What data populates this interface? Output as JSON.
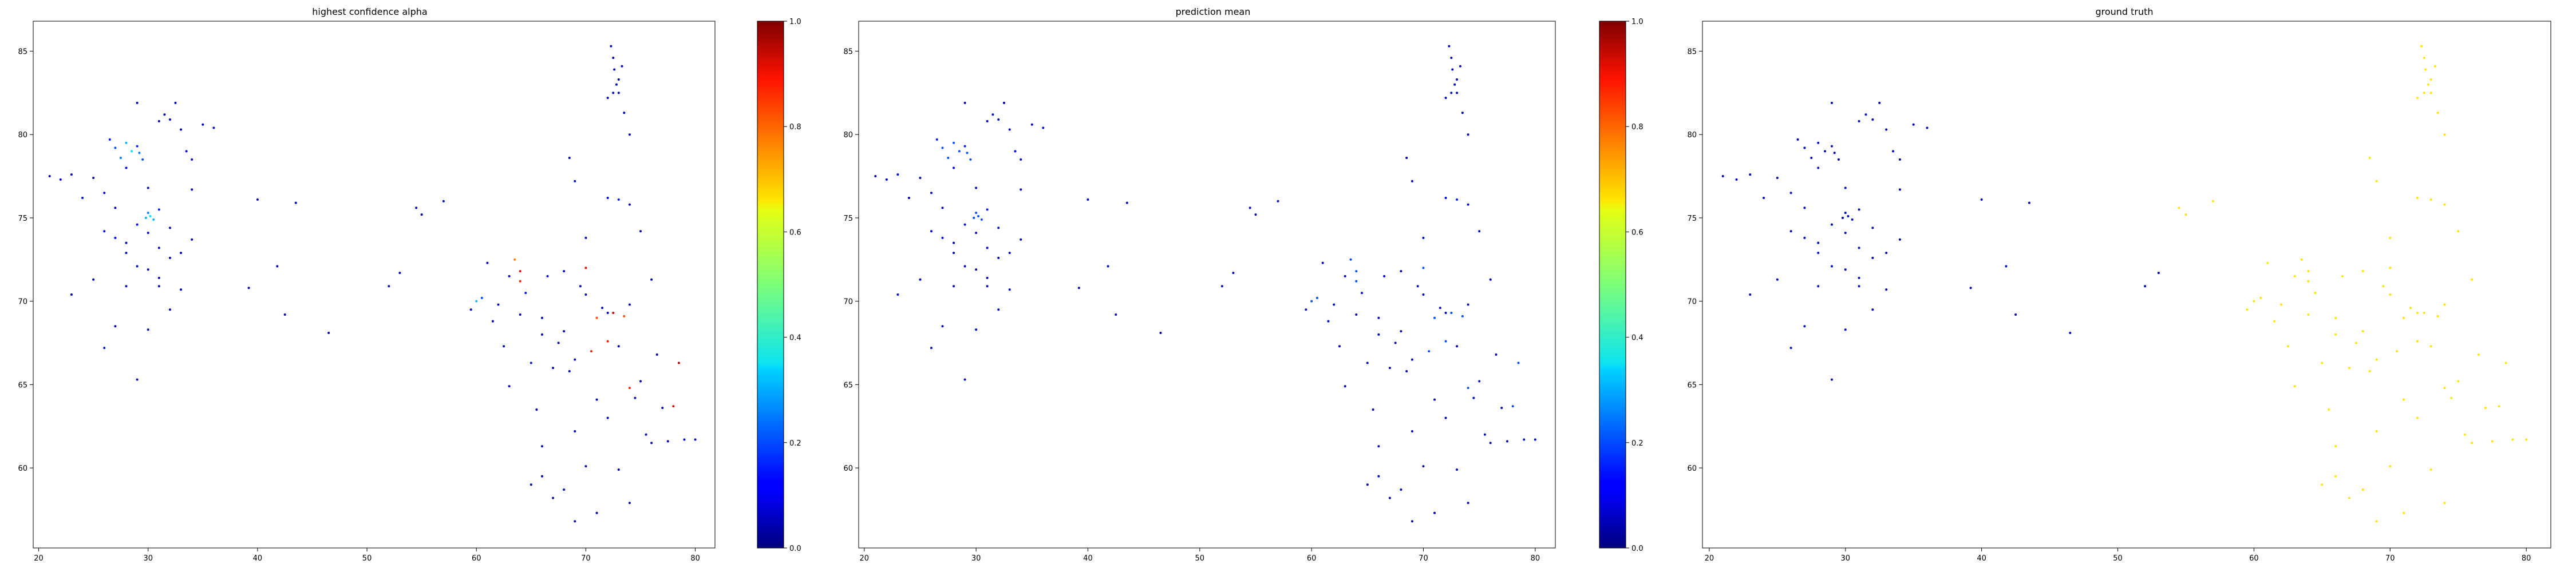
{
  "chart_data": [
    {
      "type": "scatter",
      "title": "highest confidence alpha",
      "xlabel": "",
      "ylabel": "",
      "xlim": [
        19.5,
        81.8
      ],
      "ylim": [
        55.2,
        86.8
      ],
      "xticks": [
        20,
        30,
        40,
        50,
        60,
        70,
        80
      ],
      "yticks": [
        60,
        65,
        70,
        75,
        80,
        85
      ],
      "colorscale": "jet",
      "grid": false,
      "has_colorbar": true,
      "series": [
        {
          "cluster": "nw",
          "x": [
            21,
            22,
            23,
            24,
            25,
            26,
            26.5,
            27,
            27.5,
            28,
            28,
            28.5,
            29,
            29.2,
            29.5,
            29.8,
            30,
            30.2,
            30.5,
            31,
            31,
            31.5,
            32,
            32.5,
            33,
            33.5,
            34,
            35,
            26,
            27,
            28,
            29,
            30,
            31,
            32,
            33,
            34,
            29,
            30,
            31,
            28,
            30,
            32,
            34,
            36,
            27,
            29,
            31,
            33,
            26,
            28,
            30,
            32,
            23,
            25,
            29,
            27
          ],
          "y": [
            77.5,
            77.3,
            77.6,
            76.2,
            77.4,
            76.5,
            79.7,
            79.2,
            78.6,
            78,
            79.5,
            79,
            79.3,
            78.9,
            78.5,
            75,
            75.3,
            75.1,
            74.9,
            75.5,
            80.8,
            81.2,
            80.9,
            81.9,
            80.3,
            79,
            78.5,
            80.6,
            74.2,
            73.8,
            73.5,
            74.6,
            74.1,
            73.2,
            72.6,
            72.9,
            73.7,
            72.1,
            71.9,
            71.4,
            70.9,
            68.3,
            69.5,
            76.7,
            80.4,
            68.5,
            65.3,
            70.9,
            70.7,
            67.2,
            72.9,
            76.8,
            74.4,
            70.4,
            71.3,
            81.9,
            75.6
          ],
          "v": [
            0.05,
            0.05,
            0.05,
            0.05,
            0.05,
            0.05,
            0.15,
            0.2,
            0.25,
            0.1,
            0.3,
            0.35,
            0.15,
            0.25,
            0.2,
            0.3,
            0.25,
            0.35,
            0.3,
            0.15,
            0.05,
            0.05,
            0.05,
            0.05,
            0.05,
            0.1,
            0.1,
            0.05,
            0.1,
            0.1,
            0.05,
            0.1,
            0.1,
            0.05,
            0.05,
            0.05,
            0.05,
            0.05,
            0.05,
            0.05,
            0.05,
            0.05,
            0.05,
            0.05,
            0.1,
            0.05,
            0.05,
            0.05,
            0.05,
            0.05,
            0.05,
            0.05,
            0.05,
            0.05,
            0.05,
            0.05,
            0.05
          ]
        },
        {
          "cluster": "mid",
          "x": [
            39.2,
            40,
            41.8,
            42.5,
            43.5,
            46.5,
            52,
            53,
            54.5,
            55,
            57
          ],
          "y": [
            70.8,
            76.1,
            72.1,
            69.2,
            75.9,
            68.1,
            70.9,
            71.7,
            75.6,
            75.2,
            76
          ],
          "v": [
            0.05,
            0.05,
            0.05,
            0.05,
            0.05,
            0.05,
            0.05,
            0.05,
            0.05,
            0.05,
            0.05
          ]
        },
        {
          "cluster": "se",
          "x": [
            59.5,
            60,
            60.5,
            61,
            61.5,
            62,
            62.5,
            63,
            63.5,
            64,
            64,
            64.5,
            65,
            65.5,
            66,
            66.5,
            67,
            67.5,
            68,
            68.5,
            69,
            69.5,
            70,
            70.5,
            71,
            71.5,
            72,
            72.5,
            73,
            73.5,
            74,
            74.5,
            75,
            75.5,
            76,
            76.5,
            77,
            77.5,
            78,
            78.5,
            79,
            80,
            66,
            67,
            68,
            69,
            70,
            71,
            72,
            73,
            74,
            65,
            66,
            69,
            71,
            72,
            73,
            74,
            75,
            63,
            64,
            66,
            68,
            70,
            72,
            74,
            76,
            72,
            72.5,
            73,
            73.3,
            68.5,
            69,
            70
          ],
          "y": [
            69.5,
            70,
            70.2,
            72.3,
            68.8,
            69.8,
            67.3,
            64.9,
            72.5,
            71.8,
            71.2,
            70.5,
            66.3,
            63.5,
            69,
            71.5,
            66,
            67.5,
            68.2,
            65.8,
            66.5,
            70.9,
            72,
            67,
            69,
            69.6,
            67.6,
            69.3,
            67.3,
            69.1,
            64.8,
            64.2,
            65.2,
            62,
            61.5,
            66.8,
            63.6,
            61.6,
            63.7,
            66.3,
            61.7,
            61.7,
            59.5,
            58.2,
            58.7,
            62.2,
            60.1,
            64.1,
            63,
            59.9,
            57.9,
            59,
            61.3,
            56.8,
            57.3,
            76.2,
            76.1,
            75.8,
            74.2,
            71.5,
            69.2,
            68,
            71.8,
            70.4,
            69.3,
            69.8,
            71.3,
            82.2,
            82.5,
            83.3,
            84.1,
            78.6,
            77.2,
            73.8
          ],
          "v": [
            0.05,
            0.3,
            0.2,
            0.05,
            0.05,
            0.05,
            0.05,
            0.05,
            0.75,
            0.9,
            0.85,
            0.1,
            0.05,
            0.05,
            0.05,
            0.1,
            0.05,
            0.05,
            0.05,
            0.05,
            0.05,
            0.05,
            0.9,
            0.85,
            0.8,
            0.05,
            0.85,
            0.9,
            0.05,
            0.8,
            0.85,
            0.05,
            0.05,
            0.05,
            0.05,
            0.05,
            0.05,
            0.05,
            0.9,
            0.95,
            0.05,
            0.05,
            0.05,
            0.05,
            0.05,
            0.05,
            0.05,
            0.05,
            0.05,
            0.05,
            0.05,
            0.05,
            0.05,
            0.05,
            0.05,
            0.1,
            0.15,
            0.05,
            0.05,
            0.05,
            0.05,
            0.05,
            0.05,
            0.05,
            0.05,
            0.05,
            0.05,
            0.05,
            0.05,
            0.05,
            0.05,
            0.05,
            0.05,
            0.05
          ]
        },
        {
          "cluster": "top",
          "x": [
            72.3,
            72.5,
            72.6,
            72.8,
            73,
            73.5,
            74
          ],
          "y": [
            85.3,
            84.6,
            83.9,
            83,
            82.5,
            81.3,
            80
          ],
          "v": [
            0.05,
            0.05,
            0.05,
            0.05,
            0.05,
            0.05,
            0.05
          ]
        }
      ]
    },
    {
      "type": "scatter",
      "title": "prediction mean",
      "xlabel": "",
      "ylabel": "",
      "xlim": [
        19.5,
        81.8
      ],
      "ylim": [
        55.2,
        86.8
      ],
      "xticks": [
        20,
        30,
        40,
        50,
        60,
        70,
        80
      ],
      "yticks": [
        60,
        65,
        70,
        75,
        80,
        85
      ],
      "colorscale": "jet",
      "grid": false,
      "has_colorbar": true,
      "series": "same-points-low-values"
    },
    {
      "type": "scatter",
      "title": "ground truth",
      "xlabel": "",
      "ylabel": "",
      "xlim": [
        19.5,
        81.8
      ],
      "ylim": [
        55.2,
        86.8
      ],
      "xticks": [
        20,
        30,
        40,
        50,
        60,
        70,
        80
      ],
      "yticks": [
        60,
        65,
        70,
        75,
        80,
        85
      ],
      "colorscale": "jet",
      "grid": false,
      "has_colorbar": false,
      "series": "same-points-gt-values"
    }
  ],
  "colorbar": {
    "ticks": [
      "0.0",
      "0.2",
      "0.4",
      "0.6",
      "0.8",
      "1.0"
    ],
    "range": [
      0,
      1
    ]
  }
}
